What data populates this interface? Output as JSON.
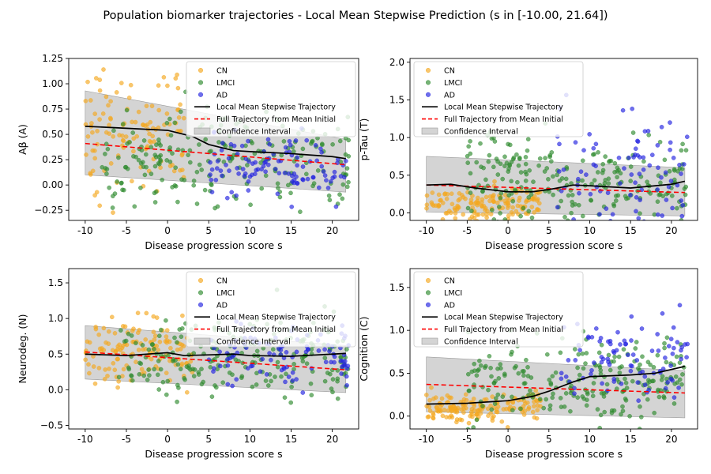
{
  "figure": {
    "title": "Population biomarker trajectories - Local Mean Stepwise Prediction (s in [-10.00, 21.64])"
  },
  "colors": {
    "CN": "#f4a81e",
    "LMCI": "#2e8b2e",
    "AD": "#2222e0",
    "trajectory": "#000000",
    "full_trajectory": "#ff0000",
    "confidence": "#b0b0b0"
  },
  "legend": {
    "entries": [
      "CN",
      "LMCI",
      "AD",
      "Local Mean Stepwise Trajectory",
      "Full Trajectory from Mean Initial",
      "Confidence Interval"
    ],
    "placement": "top-right / top-left (varies per panel)"
  },
  "chart_data": [
    {
      "type": "scatter",
      "panel": "Aβ",
      "xlabel": "Disease progression score  s",
      "ylabel": "Aβ (A)",
      "xlim": [
        -12,
        23.2
      ],
      "ylim": [
        -0.35,
        1.25
      ],
      "xticks": [
        -10,
        -5,
        0,
        5,
        10,
        15,
        20
      ],
      "yticks": [
        -0.25,
        0.0,
        0.25,
        0.5,
        0.75,
        1.0,
        1.25
      ],
      "ytick_labels": [
        "−0.25",
        "0.00",
        "0.25",
        "0.50",
        "0.75",
        "1.00",
        "1.25"
      ],
      "legend_position": "top-right",
      "scatter": {
        "CN": {
          "x_range": [
            -10,
            2
          ],
          "y_center": 0.55,
          "y_spread": 0.6,
          "count": 120
        },
        "LMCI": {
          "x_range": [
            -8,
            22
          ],
          "y_center": 0.25,
          "y_spread": 0.45,
          "count": 220
        },
        "AD": {
          "x_range": [
            5,
            22
          ],
          "y_center": 0.2,
          "y_spread": 0.3,
          "count": 110
        }
      },
      "trajectory": {
        "x": [
          -10,
          -5,
          0,
          3,
          5,
          8,
          10,
          15,
          20,
          21.64
        ],
        "y": [
          0.58,
          0.56,
          0.54,
          0.48,
          0.4,
          0.34,
          0.33,
          0.31,
          0.28,
          0.26
        ]
      },
      "full_trajectory": {
        "x": [
          -10,
          21.64
        ],
        "y": [
          0.41,
          0.2
        ]
      },
      "confidence_interval": {
        "x": [
          -10,
          21.64
        ],
        "upper": [
          0.93,
          0.45
        ],
        "lower": [
          0.1,
          -0.07
        ]
      }
    },
    {
      "type": "scatter",
      "panel": "p-Tau",
      "xlabel": "Disease progression score  s",
      "ylabel": "p-Tau (T)",
      "xlim": [
        -12,
        23.2
      ],
      "ylim": [
        -0.1,
        2.05
      ],
      "xticks": [
        -10,
        -5,
        0,
        5,
        10,
        15,
        20
      ],
      "yticks": [
        0.0,
        0.5,
        1.0,
        1.5,
        2.0
      ],
      "ytick_labels": [
        "0.0",
        "0.5",
        "1.0",
        "1.5",
        "2.0"
      ],
      "legend_position": "top-left",
      "scatter": {
        "CN": {
          "x_range": [
            -10,
            4
          ],
          "y_center": 0.12,
          "y_spread": 0.25,
          "count": 150
        },
        "LMCI": {
          "x_range": [
            -5,
            22
          ],
          "y_center": 0.45,
          "y_spread": 0.6,
          "count": 230
        },
        "AD": {
          "x_range": [
            6,
            22
          ],
          "y_center": 0.5,
          "y_spread": 0.9,
          "count": 90
        }
      },
      "trajectory": {
        "x": [
          -10,
          -7,
          -4,
          0,
          3,
          5,
          8,
          10,
          15,
          20,
          21.64
        ],
        "y": [
          0.37,
          0.38,
          0.33,
          0.28,
          0.28,
          0.31,
          0.37,
          0.36,
          0.33,
          0.38,
          0.42
        ]
      },
      "full_trajectory": {
        "x": [
          -10,
          21.64
        ],
        "y": [
          0.37,
          0.27
        ]
      },
      "confidence_interval": {
        "x": [
          -10,
          21.64
        ],
        "upper": [
          0.75,
          0.6
        ],
        "lower": [
          0.01,
          -0.04
        ]
      }
    },
    {
      "type": "scatter",
      "panel": "Neurodeg.",
      "xlabel": "Disease progression score  s",
      "ylabel": "Neurodeg. (N)",
      "xlim": [
        -12,
        23.2
      ],
      "ylim": [
        -0.55,
        1.7
      ],
      "xticks": [
        -10,
        -5,
        0,
        5,
        10,
        15,
        20
      ],
      "yticks": [
        -0.5,
        0.0,
        0.5,
        1.0,
        1.5
      ],
      "ytick_labels": [
        "−0.5",
        "0.0",
        "0.5",
        "1.0",
        "1.5"
      ],
      "legend_position": "top-right",
      "scatter": {
        "CN": {
          "x_range": [
            -10,
            3
          ],
          "y_center": 0.55,
          "y_spread": 0.5,
          "count": 130
        },
        "LMCI": {
          "x_range": [
            -6,
            22
          ],
          "y_center": 0.45,
          "y_spread": 0.55,
          "count": 220
        },
        "AD": {
          "x_range": [
            5,
            22
          ],
          "y_center": 0.5,
          "y_spread": 0.4,
          "count": 100
        }
      },
      "trajectory": {
        "x": [
          -10,
          -5,
          0,
          2,
          5,
          8,
          10,
          15,
          20,
          21.64
        ],
        "y": [
          0.5,
          0.48,
          0.52,
          0.48,
          0.49,
          0.5,
          0.48,
          0.47,
          0.5,
          0.51
        ]
      },
      "full_trajectory": {
        "x": [
          -10,
          21.64
        ],
        "y": [
          0.53,
          0.28
        ]
      },
      "confidence_interval": {
        "x": [
          -10,
          21.64
        ],
        "upper": [
          0.9,
          0.62
        ],
        "lower": [
          0.15,
          -0.04
        ]
      }
    },
    {
      "type": "scatter",
      "panel": "Cognition",
      "xlabel": "Disease progression score  s",
      "ylabel": "Cognition (C)",
      "xlim": [
        -12,
        23.2
      ],
      "ylim": [
        -0.15,
        1.72
      ],
      "xticks": [
        -10,
        -5,
        0,
        5,
        10,
        15,
        20
      ],
      "yticks": [
        0.0,
        0.5,
        1.0,
        1.5
      ],
      "ytick_labels": [
        "0.0",
        "0.5",
        "1.0",
        "1.5"
      ],
      "legend_position": "top-left",
      "scatter": {
        "CN": {
          "x_range": [
            -10,
            4
          ],
          "y_center": 0.1,
          "y_spread": 0.18,
          "count": 160
        },
        "LMCI": {
          "x_range": [
            -5,
            22
          ],
          "y_center": 0.45,
          "y_spread": 0.5,
          "count": 220
        },
        "AD": {
          "x_range": [
            6,
            22
          ],
          "y_center": 0.65,
          "y_spread": 0.5,
          "count": 90
        }
      },
      "trajectory": {
        "x": [
          -10,
          -5,
          0,
          3,
          5,
          8,
          10,
          15,
          18,
          21.64
        ],
        "y": [
          0.14,
          0.15,
          0.18,
          0.23,
          0.29,
          0.4,
          0.46,
          0.48,
          0.5,
          0.58
        ]
      },
      "full_trajectory": {
        "x": [
          -10,
          21.64
        ],
        "y": [
          0.37,
          0.27
        ]
      },
      "confidence_interval": {
        "x": [
          -10,
          21.64
        ],
        "upper": [
          0.69,
          0.53
        ],
        "lower": [
          0.05,
          -0.02
        ]
      }
    }
  ]
}
